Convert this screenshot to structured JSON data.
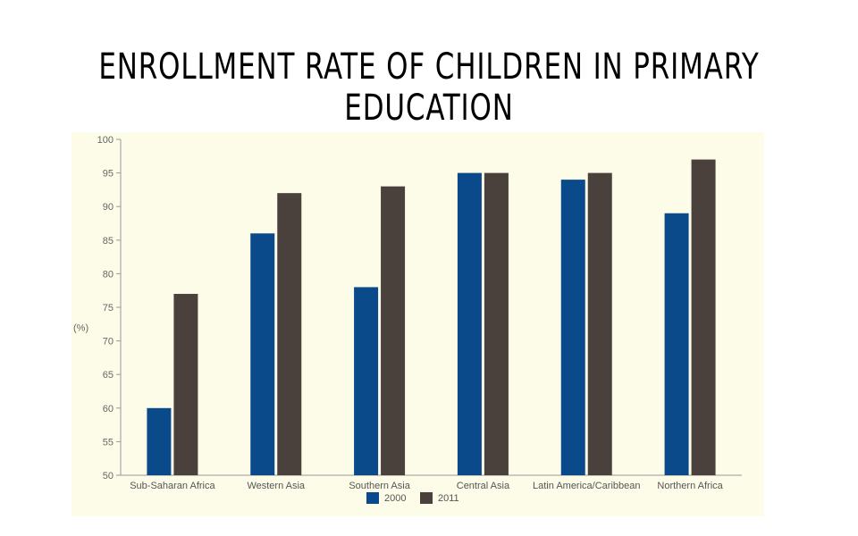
{
  "slide": {
    "title": "ENROLLMENT RATE OF CHILDREN IN PRIMARY EDUCATION"
  },
  "chart_data": {
    "type": "bar",
    "title": "",
    "xlabel": "",
    "ylabel": "(%)",
    "ylim": [
      50,
      100
    ],
    "yticks": [
      50,
      55,
      60,
      65,
      70,
      75,
      80,
      85,
      90,
      95,
      100
    ],
    "categories": [
      "Sub-Saharan Africa",
      "Western Asia",
      "Southern Asia",
      "Central Asia",
      "Latin America/Caribbean",
      "Northern Africa"
    ],
    "series": [
      {
        "name": "2000",
        "color": "#0a4a8a",
        "values": [
          60,
          86,
          78,
          95,
          94,
          89
        ]
      },
      {
        "name": "2011",
        "color": "#4a403c",
        "values": [
          77,
          92,
          93,
          95,
          95,
          97
        ]
      }
    ],
    "grid": false,
    "legend": "bottom"
  }
}
